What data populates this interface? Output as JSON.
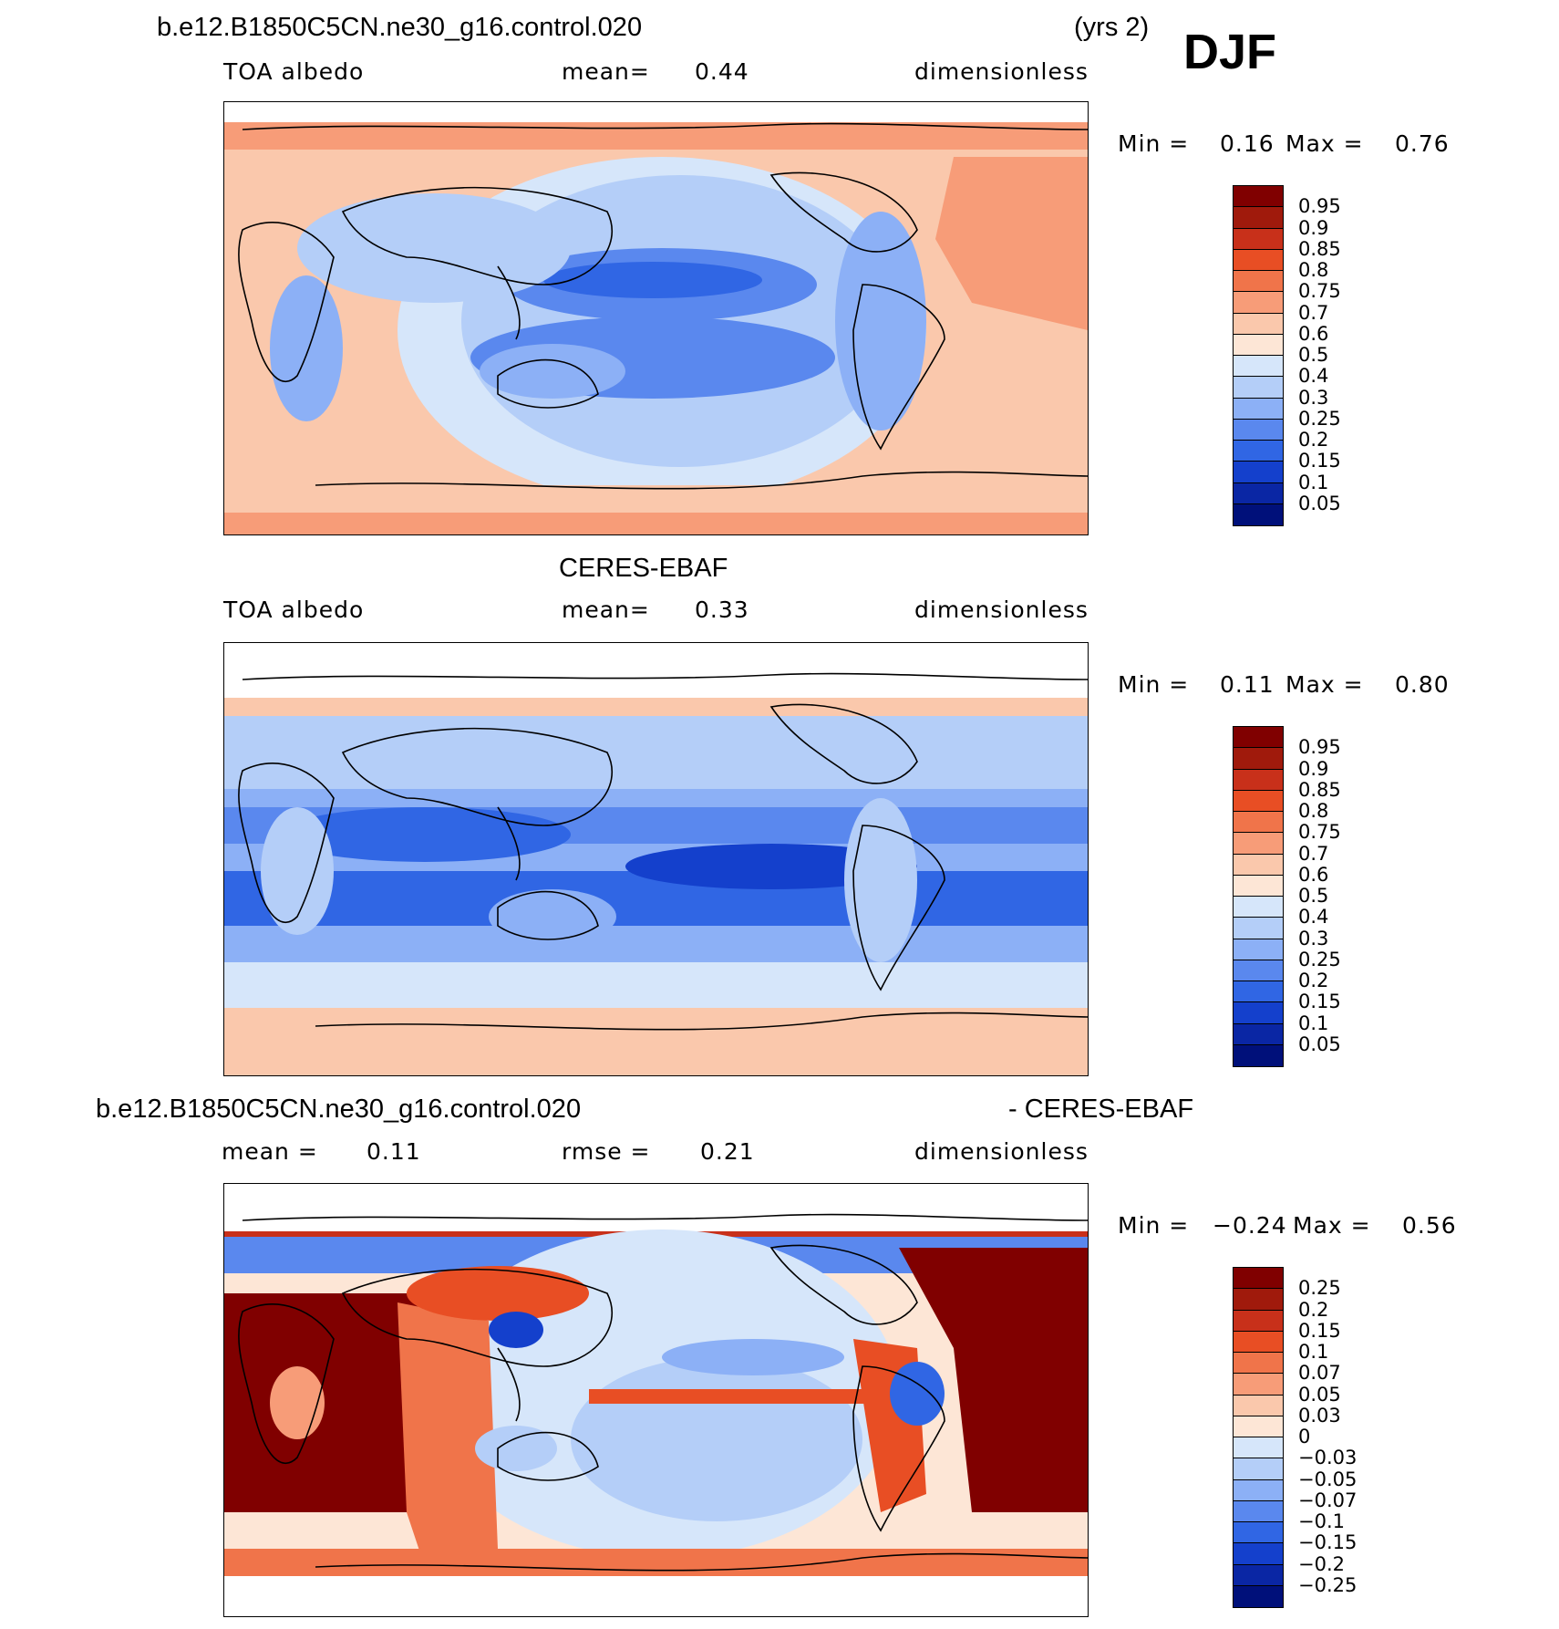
{
  "header": {
    "case_title": "b.e12.B1850C5CN.ne30_g16.control.020",
    "years": "(yrs 2)",
    "season": "DJF"
  },
  "panels": [
    {
      "title": "",
      "var_label": "TOA albedo",
      "stat_label": "mean=",
      "stat_value": "0.44",
      "units": "dimensionless",
      "min_label": "Min =",
      "min_value": "0.16",
      "max_label": "Max =",
      "max_value": "0.76",
      "colorbar_levels": [
        "0.95",
        "0.9",
        "0.85",
        "0.8",
        "0.75",
        "0.7",
        "0.6",
        "0.5",
        "0.4",
        "0.3",
        "0.25",
        "0.2",
        "0.15",
        "0.1",
        "0.05"
      ]
    },
    {
      "title": "CERES-EBAF",
      "var_label": "TOA albedo",
      "stat_label": "mean=",
      "stat_value": "0.33",
      "units": "dimensionless",
      "min_label": "Min =",
      "min_value": "0.11",
      "max_label": "Max =",
      "max_value": "0.80",
      "colorbar_levels": [
        "0.95",
        "0.9",
        "0.85",
        "0.8",
        "0.75",
        "0.7",
        "0.6",
        "0.5",
        "0.4",
        "0.3",
        "0.25",
        "0.2",
        "0.15",
        "0.1",
        "0.05"
      ]
    },
    {
      "title": "b.e12.B1850C5CN.ne30_g16.control.020",
      "title_right": "- CERES-EBAF",
      "mean_label": "mean =",
      "mean_value": "0.11",
      "rmse_label": "rmse =",
      "rmse_value": "0.21",
      "units": "dimensionless",
      "min_label": "Min =",
      "min_value": "−0.24",
      "max_label": "Max =",
      "max_value": "0.56",
      "colorbar_levels": [
        "0.25",
        "0.2",
        "0.15",
        "0.1",
        "0.07",
        "0.05",
        "0.03",
        "0",
        "−0.03",
        "−0.05",
        "−0.07",
        "−0.1",
        "−0.15",
        "−0.2",
        "−0.25"
      ]
    }
  ],
  "colormap": [
    "#800000",
    "#a01a0c",
    "#c8301a",
    "#e84e24",
    "#f0744a",
    "#f79c78",
    "#fac8ac",
    "#fde6d6",
    "#d6e6fa",
    "#b4cef8",
    "#8cb0f6",
    "#5a88ee",
    "#3066e4",
    "#1440cc",
    "#0a26a4",
    "#00107a"
  ]
}
